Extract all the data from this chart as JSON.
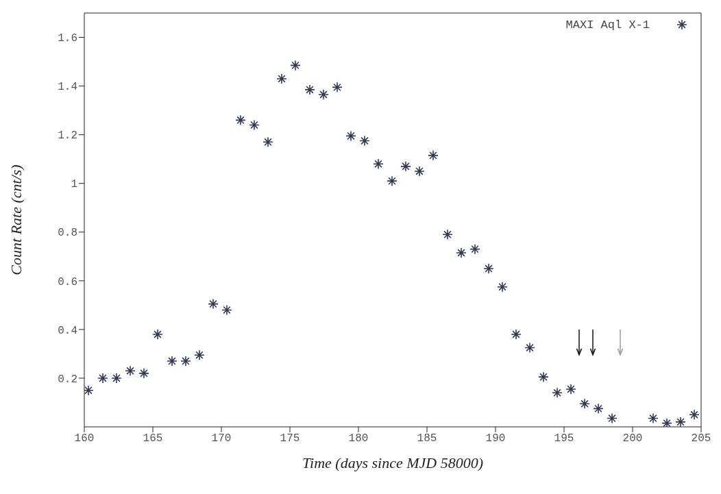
{
  "chart_data": {
    "type": "scatter",
    "xlabel": "Time (days since MJD 58000)",
    "ylabel": "Count Rate (cnt/s)",
    "xlim": [
      160,
      205
    ],
    "xticks": [
      160,
      165,
      170,
      175,
      180,
      185,
      190,
      195,
      200,
      205
    ],
    "ylim": [
      0,
      1.7
    ],
    "yticks": [
      0.2,
      0.4,
      0.6,
      0.8,
      {
        "value": 1,
        "label": "1"
      },
      1.2,
      1.4,
      1.6
    ],
    "grid": false,
    "legend": "top right",
    "marker": "cross",
    "series": [
      {
        "name": "MAXI Aql X-1",
        "color": "#2e3a55",
        "x": [
          160.3,
          161.35,
          162.35,
          163.35,
          164.35,
          165.35,
          166.4,
          167.4,
          168.4,
          169.4,
          170.4,
          171.4,
          172.4,
          173.4,
          174.4,
          175.4,
          176.45,
          177.45,
          178.45,
          179.45,
          180.45,
          181.45,
          182.45,
          183.45,
          184.45,
          185.45,
          186.5,
          187.5,
          188.5,
          189.5,
          190.5,
          191.5,
          192.5,
          193.5,
          194.5,
          195.5,
          196.5,
          197.5,
          198.5,
          201.5,
          202.5,
          203.5,
          204.5
        ],
        "values": [
          0.15,
          0.2,
          0.2,
          0.23,
          0.22,
          0.38,
          0.27,
          0.27,
          0.295,
          0.505,
          0.48,
          1.26,
          1.24,
          1.17,
          1.43,
          1.485,
          1.385,
          1.365,
          1.395,
          1.195,
          1.175,
          1.08,
          1.01,
          1.07,
          1.05,
          1.115,
          0.79,
          0.715,
          0.73,
          0.65,
          0.575,
          0.38,
          0.325,
          0.205,
          0.14,
          0.155,
          0.095,
          0.075,
          0.035,
          0.035,
          0.015,
          0.02,
          0.05
        ]
      }
    ]
  }
}
